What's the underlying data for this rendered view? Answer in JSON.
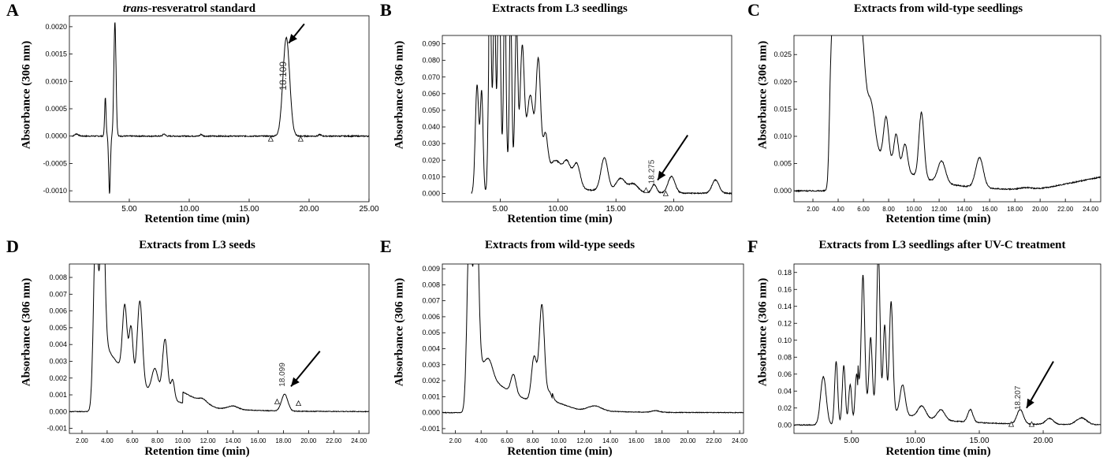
{
  "chart_data": [
    {
      "letter": "A",
      "type": "line",
      "title_italic": "trans",
      "title_rest": "-resveratrol  standard",
      "xlabel": "Retention time (min)",
      "ylabel": "Absorbance (306 nm)",
      "xlim": [
        0,
        25
      ],
      "ylim": [
        -0.0012,
        0.0022
      ],
      "xticks": [
        5,
        10,
        15,
        20,
        25
      ],
      "xtick_labels": [
        "5.00",
        "10.00",
        "15.00",
        "20.00",
        "25.00"
      ],
      "yticks": [
        -0.001,
        -0.0005,
        0,
        0.0005,
        0.001,
        0.0015,
        0.002
      ],
      "ytick_labels": [
        "-0.0010",
        "-0.0005",
        "0.0000",
        "0.0005",
        "0.0010",
        "0.0015",
        "0.0020"
      ],
      "baseline": 0,
      "x_start": 0.2,
      "noise": 1e-05,
      "peaks": [
        [
          0.6,
          4e-05,
          0.15
        ],
        [
          3.0,
          0.0007,
          0.06
        ],
        [
          3.35,
          -0.00105,
          0.07
        ],
        [
          3.8,
          0.0021,
          0.09
        ],
        [
          7.9,
          4e-05,
          0.1
        ],
        [
          11.0,
          3e-05,
          0.1
        ],
        [
          18.1,
          0.0018,
          0.28
        ],
        [
          20.9,
          3e-05,
          0.1
        ]
      ],
      "peak_label": "18.109",
      "peak_label_rotation": -90,
      "peak_label_size": 12,
      "peak_label_pos": [
        18.1,
        0.0011
      ],
      "arrow_from": [
        19.6,
        0.00205
      ],
      "arrow_to": [
        18.3,
        0.0017
      ],
      "triangles": [
        [
          16.8,
          -5e-05
        ],
        [
          19.3,
          -5e-05
        ]
      ]
    },
    {
      "letter": "B",
      "type": "line",
      "title": "Extracts from L3 seedlings",
      "xlabel": "Retention time (min)",
      "ylabel": "Absorbance (306 nm)",
      "xlim": [
        0,
        25
      ],
      "ylim": [
        -0.005,
        0.095
      ],
      "xticks": [
        5,
        10,
        15,
        20
      ],
      "xtick_labels": [
        "5.00",
        "10.00",
        "15.00",
        "20.00"
      ],
      "yticks": [
        0,
        0.01,
        0.02,
        0.03,
        0.04,
        0.05,
        0.06,
        0.07,
        0.08,
        0.09
      ],
      "ytick_labels": [
        "0.000",
        "0.010",
        "0.020",
        "0.030",
        "0.040",
        "0.050",
        "0.060",
        "0.070",
        "0.080",
        "0.090"
      ],
      "baseline": 0.0,
      "x_start": 2.5,
      "noise": 0.0003,
      "peaks": [
        [
          3.0,
          0.065,
          0.15
        ],
        [
          3.4,
          0.06,
          0.12
        ],
        [
          4.1,
          0.11,
          0.12
        ],
        [
          4.5,
          0.1,
          0.1
        ],
        [
          4.9,
          0.12,
          0.12
        ],
        [
          5.4,
          0.11,
          0.1
        ],
        [
          5.9,
          0.1,
          0.1
        ],
        [
          6.4,
          0.09,
          0.12
        ],
        [
          6.9,
          0.075,
          0.18
        ],
        [
          7.6,
          0.05,
          0.3
        ],
        [
          8.3,
          0.07,
          0.2
        ],
        [
          8.9,
          0.025,
          0.2
        ],
        [
          9.8,
          0.015,
          0.6
        ],
        [
          10.8,
          0.012,
          0.3
        ],
        [
          11.6,
          0.015,
          0.3
        ],
        [
          14.0,
          0.02,
          0.3
        ],
        [
          15.4,
          0.008,
          0.4
        ],
        [
          16.5,
          0.005,
          0.4
        ],
        [
          18.3,
          0.005,
          0.2
        ],
        [
          19.8,
          0.01,
          0.3
        ],
        [
          23.6,
          0.008,
          0.3
        ]
      ],
      "tail": [
        [
          4.0,
          0.025,
          3.5
        ]
      ],
      "peak_label": "18.275",
      "peak_label_rotation": -90,
      "peak_label_size": 10,
      "peak_label_pos": [
        18.3,
        0.013
      ],
      "arrow_from": [
        21.2,
        0.035
      ],
      "arrow_to": [
        18.6,
        0.008
      ],
      "triangles": [
        [
          17.6,
          0.002
        ],
        [
          19.3,
          0.0
        ]
      ]
    },
    {
      "letter": "C",
      "type": "line",
      "title": "Extracts from wild-type seedlings",
      "xlabel": "Retention time (min)",
      "ylabel": "Absorbance (306 nm)",
      "xlim": [
        0.5,
        24.8
      ],
      "ylim": [
        -0.002,
        0.0285
      ],
      "xticks": [
        2,
        4,
        6,
        8,
        10,
        12,
        14,
        16,
        18,
        20,
        22,
        24
      ],
      "xtick_labels": [
        "2.00",
        "4.00",
        "6.00",
        "8.00",
        "10.00",
        "12.00",
        "14.00",
        "16.00",
        "18.00",
        "20.00",
        "22.00",
        "24.00"
      ],
      "yticks": [
        0,
        0.005,
        0.01,
        0.015,
        0.02,
        0.025
      ],
      "ytick_labels": [
        "0.000",
        "0.005",
        "0.010",
        "0.015",
        "0.020",
        "0.025"
      ],
      "baseline": 0.0,
      "x_start": 0.5,
      "noise": 0.0001,
      "peaks": [
        [
          3.4,
          0.012,
          0.12
        ],
        [
          3.7,
          0.035,
          0.2
        ],
        [
          4.3,
          0.03,
          0.2
        ],
        [
          5.0,
          0.03,
          0.3
        ],
        [
          5.8,
          0.02,
          0.3
        ],
        [
          6.6,
          0.008,
          0.3
        ],
        [
          7.8,
          0.008,
          0.2
        ],
        [
          8.6,
          0.006,
          0.18
        ],
        [
          9.3,
          0.005,
          0.2
        ],
        [
          10.6,
          0.012,
          0.2
        ],
        [
          12.2,
          0.004,
          0.3
        ],
        [
          15.2,
          0.0055,
          0.3
        ],
        [
          19.0,
          0.0004,
          0.6
        ]
      ],
      "tail": [
        [
          3.6,
          0.02,
          3.3
        ]
      ],
      "rise": [
        [
          19.5,
          0.0025
        ]
      ],
      "peak_label": "",
      "triangles": []
    },
    {
      "letter": "D",
      "type": "line",
      "title": "Extracts from L3 seeds",
      "xlabel": "Retention time (min)",
      "ylabel": "Absorbance (306 nm)",
      "xlim": [
        1.0,
        24.8
      ],
      "ylim": [
        -0.0013,
        0.0088
      ],
      "xticks": [
        2,
        4,
        6,
        8,
        10,
        12,
        14,
        16,
        18,
        20,
        22,
        24
      ],
      "xtick_labels": [
        "2.00",
        "4.00",
        "6.00",
        "8.00",
        "10.00",
        "12.00",
        "14.00",
        "16.00",
        "18.00",
        "20.00",
        "22.00",
        "24.00"
      ],
      "yticks": [
        -0.001,
        0,
        0.001,
        0.002,
        0.003,
        0.004,
        0.005,
        0.006,
        0.007,
        0.008
      ],
      "ytick_labels": [
        "-0.001",
        "0.000",
        "0.001",
        "0.002",
        "0.003",
        "0.004",
        "0.005",
        "0.006",
        "0.007",
        "0.008"
      ],
      "baseline": 0.0,
      "x_start": 1.0,
      "noise": 2e-05,
      "peaks": [
        [
          3.1,
          0.011,
          0.18
        ],
        [
          3.6,
          0.011,
          0.18
        ],
        [
          5.4,
          0.004,
          0.18
        ],
        [
          5.9,
          0.003,
          0.15
        ],
        [
          6.6,
          0.005,
          0.2
        ],
        [
          7.8,
          0.0015,
          0.25
        ],
        [
          8.6,
          0.0035,
          0.2
        ],
        [
          9.2,
          0.0012,
          0.15
        ],
        [
          11.6,
          0.0002,
          0.3
        ],
        [
          14.0,
          0.0002,
          0.4
        ],
        [
          18.1,
          0.001,
          0.25
        ]
      ],
      "tail": [
        [
          3.5,
          0.0045,
          3.0
        ]
      ],
      "slope": [
        [
          10.0,
          0.0011,
          -4e-05
        ]
      ],
      "peak_label": "18.099",
      "peak_label_rotation": -90,
      "peak_label_size": 10,
      "peak_label_pos": [
        18.1,
        0.0022
      ],
      "arrow_from": [
        20.9,
        0.0036
      ],
      "arrow_to": [
        18.6,
        0.0015
      ],
      "triangles": [
        [
          17.5,
          0.0006
        ],
        [
          19.2,
          0.0005
        ]
      ]
    },
    {
      "letter": "E",
      "type": "line",
      "title": "Extracts from wild-type seeds",
      "xlabel": "Retention time (min)",
      "ylabel": "Absorbance (306 nm)",
      "xlim": [
        1.0,
        24.3
      ],
      "ylim": [
        -0.0013,
        0.0093
      ],
      "xticks": [
        2,
        4,
        6,
        8,
        10,
        12,
        14,
        16,
        18,
        20,
        22,
        24
      ],
      "xtick_labels": [
        "2.00",
        "4.00",
        "6.00",
        "8.00",
        "10.00",
        "12.00",
        "14.00",
        "16.00",
        "18.00",
        "20.00",
        "22.00",
        "24.00"
      ],
      "yticks": [
        -0.001,
        0,
        0.001,
        0.002,
        0.003,
        0.004,
        0.005,
        0.006,
        0.007,
        0.008,
        0.009
      ],
      "ytick_labels": [
        "-0.001",
        "0.000",
        "0.001",
        "0.002",
        "0.003",
        "0.004",
        "0.005",
        "0.006",
        "0.007",
        "0.008",
        "0.009"
      ],
      "baseline": 0.0,
      "x_start": 1.0,
      "noise": 2e-05,
      "peaks": [
        [
          3.1,
          0.012,
          0.18
        ],
        [
          3.6,
          0.012,
          0.18
        ],
        [
          4.6,
          0.001,
          0.3
        ],
        [
          6.5,
          0.0012,
          0.2
        ],
        [
          8.1,
          0.0028,
          0.2
        ],
        [
          8.7,
          0.0062,
          0.2
        ],
        [
          9.3,
          0.0008,
          0.2
        ],
        [
          12.8,
          0.0003,
          0.5
        ],
        [
          17.5,
          0.0001,
          0.3
        ]
      ],
      "tail": [
        [
          3.5,
          0.0035,
          2.8
        ]
      ],
      "slope": [
        [
          9.5,
          0.0006,
          -3e-05
        ]
      ],
      "peak_label": "",
      "triangles": []
    },
    {
      "letter": "F",
      "type": "line",
      "title": "Extracts from L3 seedlings after UV-C treatment",
      "xlabel": "Retention time (min)",
      "ylabel": "Absorbance (306 nm)",
      "xlim": [
        0.5,
        24.5
      ],
      "ylim": [
        -0.01,
        0.19
      ],
      "xticks": [
        5,
        10,
        15,
        20
      ],
      "xtick_labels": [
        "5.00",
        "10.00",
        "15.00",
        "20.00"
      ],
      "yticks": [
        0,
        0.02,
        0.04,
        0.06,
        0.08,
        0.1,
        0.12,
        0.14,
        0.16,
        0.18
      ],
      "ytick_labels": [
        "0.00",
        "0.02",
        "0.04",
        "0.06",
        "0.08",
        "0.10",
        "0.12",
        "0.14",
        "0.16",
        "0.18"
      ],
      "baseline": 0.0,
      "x_start": 0.5,
      "noise": 0.0005,
      "peaks": [
        [
          2.8,
          0.057,
          0.22
        ],
        [
          3.8,
          0.075,
          0.12
        ],
        [
          4.4,
          0.07,
          0.12
        ],
        [
          4.9,
          0.048,
          0.12
        ],
        [
          5.4,
          0.06,
          0.12
        ],
        [
          5.9,
          0.15,
          0.13
        ],
        [
          6.5,
          0.08,
          0.12
        ],
        [
          7.1,
          0.185,
          0.13
        ],
        [
          7.6,
          0.1,
          0.12
        ],
        [
          8.1,
          0.13,
          0.14
        ],
        [
          9.0,
          0.035,
          0.2
        ],
        [
          10.5,
          0.014,
          0.3
        ],
        [
          12.0,
          0.012,
          0.3
        ],
        [
          14.3,
          0.015,
          0.2
        ],
        [
          18.2,
          0.017,
          0.25
        ],
        [
          20.5,
          0.007,
          0.3
        ],
        [
          23.0,
          0.008,
          0.4
        ]
      ],
      "tail": [
        [
          5.5,
          0.03,
          4.0
        ]
      ],
      "peak_label": "18.207",
      "peak_label_rotation": -90,
      "peak_label_size": 10,
      "peak_label_pos": [
        18.2,
        0.032
      ],
      "arrow_from": [
        20.8,
        0.075
      ],
      "arrow_to": [
        18.7,
        0.02
      ],
      "triangles": [
        [
          17.5,
          0.001
        ],
        [
          19.1,
          0.001
        ]
      ]
    }
  ]
}
